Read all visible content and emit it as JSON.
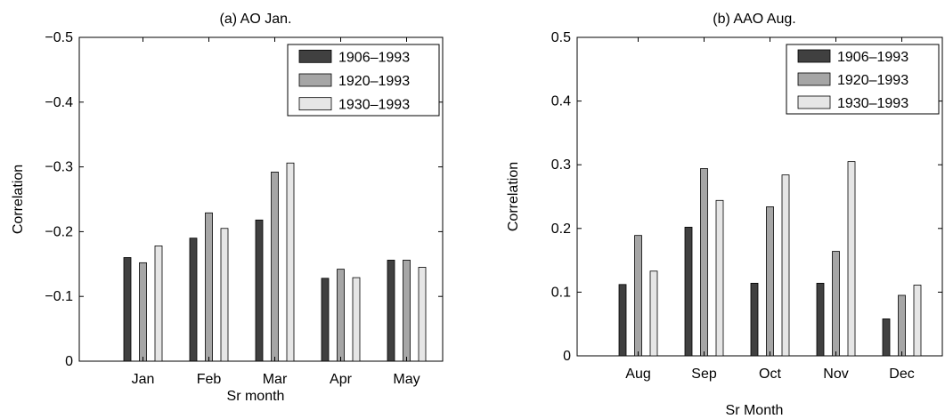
{
  "chart_data": [
    {
      "type": "bar",
      "title": "(a) AO Jan.",
      "xlabel": "Sr month",
      "ylabel": "Correlation",
      "categories": [
        "Jan",
        "Feb",
        "Mar",
        "Apr",
        "May"
      ],
      "series": [
        {
          "name": "1906–1993",
          "color": "#404040",
          "values": [
            -0.16,
            -0.19,
            -0.218,
            -0.128,
            -0.156
          ]
        },
        {
          "name": "1920–1993",
          "color": "#a6a6a6",
          "values": [
            -0.152,
            -0.229,
            -0.292,
            -0.142,
            -0.156
          ]
        },
        {
          "name": "1930–1993",
          "color": "#e6e6e6",
          "values": [
            -0.178,
            -0.205,
            -0.306,
            -0.129,
            -0.145
          ]
        }
      ],
      "ylim": [
        0,
        -0.5
      ],
      "y_reversed": true,
      "yticks": [
        0,
        -0.1,
        -0.2,
        -0.3,
        -0.4,
        -0.5
      ],
      "ytick_labels": [
        "0",
        "−0.1",
        "−0.2",
        "−0.3",
        "−0.4",
        "−0.5"
      ],
      "grid": false,
      "legend_position": "top-right"
    },
    {
      "type": "bar",
      "title": "(b) AAO Aug.",
      "xlabel": "Sr Month",
      "ylabel": "Correlation",
      "categories": [
        "Aug",
        "Sep",
        "Oct",
        "Nov",
        "Dec"
      ],
      "series": [
        {
          "name": "1906–1993",
          "color": "#404040",
          "values": [
            0.112,
            0.202,
            0.114,
            0.114,
            0.058
          ]
        },
        {
          "name": "1920–1993",
          "color": "#a6a6a6",
          "values": [
            0.189,
            0.294,
            0.234,
            0.164,
            0.095
          ]
        },
        {
          "name": "1930–1993",
          "color": "#e6e6e6",
          "values": [
            0.133,
            0.244,
            0.284,
            0.305,
            0.111
          ]
        }
      ],
      "ylim": [
        0,
        0.5
      ],
      "y_reversed": false,
      "yticks": [
        0,
        0.1,
        0.2,
        0.3,
        0.4,
        0.5
      ],
      "ytick_labels": [
        "0",
        "0.1",
        "0.2",
        "0.3",
        "0.4",
        "0.5"
      ],
      "grid": false,
      "legend_position": "top-right"
    }
  ]
}
